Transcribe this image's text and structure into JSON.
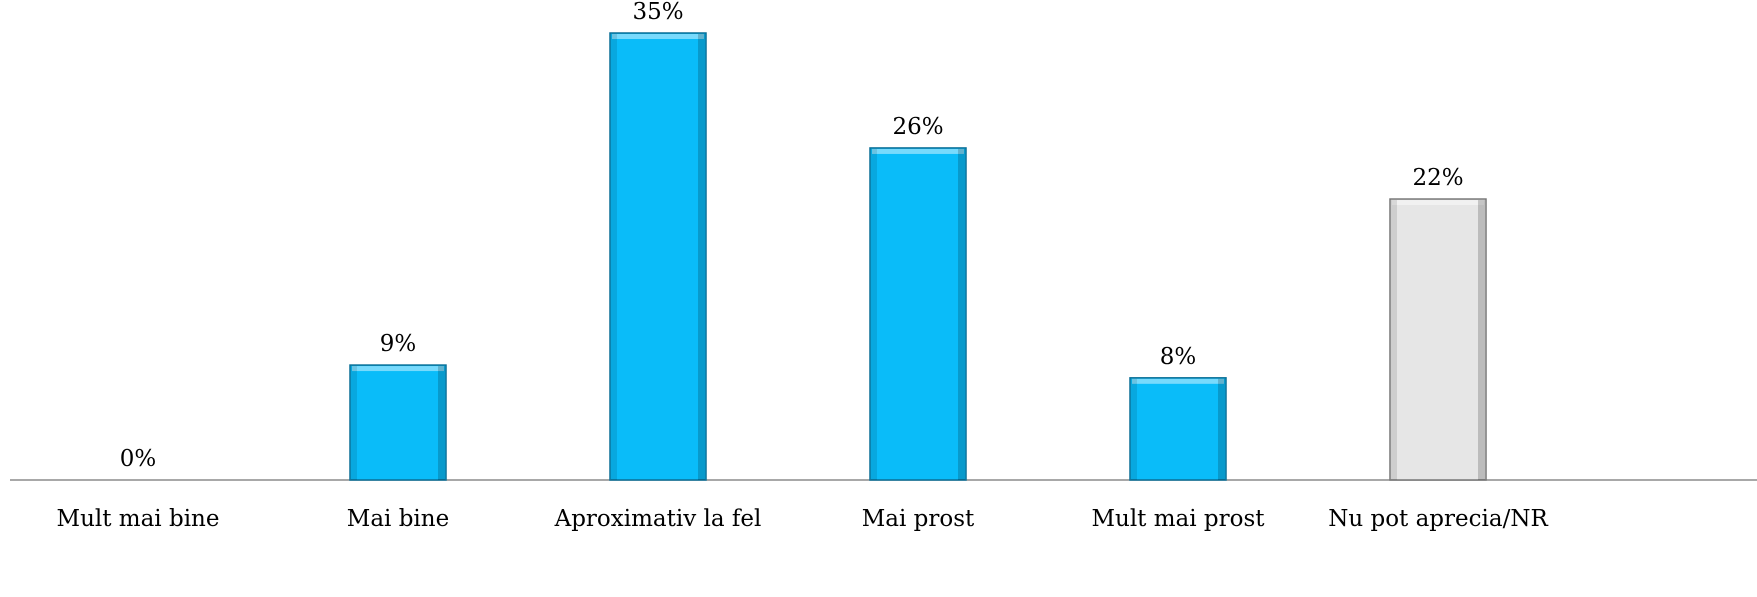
{
  "chart_data": {
    "type": "bar",
    "categories": [
      "Mult mai bine",
      "Mai bine",
      "Aproximativ la fel",
      "Mai prost",
      "Mult mai prost",
      "Nu pot aprecia/NR"
    ],
    "values": [
      0,
      9,
      35,
      26,
      8,
      22
    ],
    "value_labels": [
      "0%",
      "9%",
      "35%",
      "26%",
      "8%",
      "22%"
    ],
    "colors": [
      "#0abcf9",
      "#0abcf9",
      "#0abcf9",
      "#0abcf9",
      "#0abcf9",
      "#e6e6e6"
    ]
  }
}
